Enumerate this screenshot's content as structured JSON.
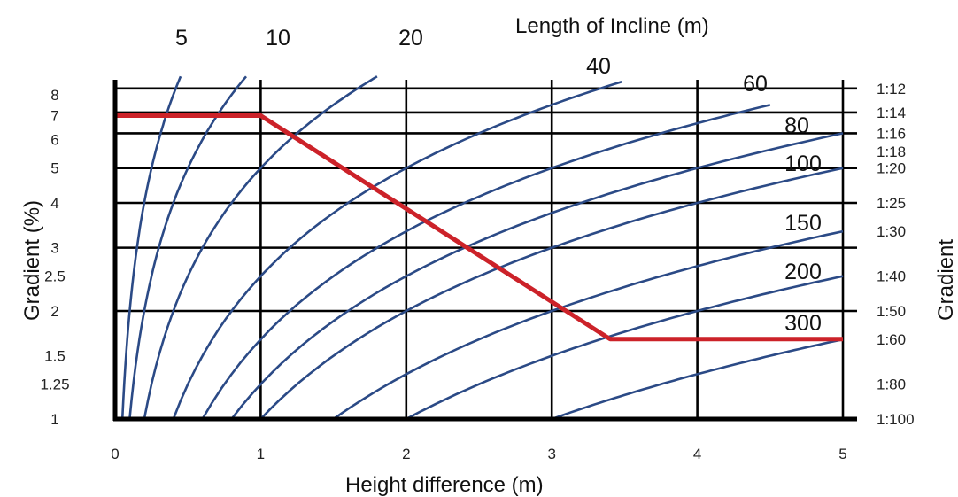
{
  "chart_data": {
    "type": "line",
    "title": "",
    "legend_title": "Length of Incline (m)",
    "xlabel": "Height difference (m)",
    "ylabel": "Gradient (%)",
    "y2label": "Gradient",
    "xlim": [
      0,
      5
    ],
    "ylim": [
      1,
      8
    ],
    "y_scale": "log",
    "grid": true,
    "x_ticks": [
      "0",
      "1",
      "2",
      "3",
      "4",
      "5"
    ],
    "y_ticks": [
      {
        "value": 8,
        "label": "8"
      },
      {
        "value": 7,
        "label": "7"
      },
      {
        "value": 6,
        "label": "6"
      },
      {
        "value": 5,
        "label": "5"
      },
      {
        "value": 4,
        "label": "4"
      },
      {
        "value": 3,
        "label": "3"
      },
      {
        "value": 2.5,
        "label": "2.5"
      },
      {
        "value": 2,
        "label": "2"
      },
      {
        "value": 1.5,
        "label": "1.5"
      },
      {
        "value": 1.25,
        "label": "1.25"
      },
      {
        "value": 1,
        "label": "1"
      }
    ],
    "y2_ticks": [
      {
        "value": 8.333,
        "label": "1:12"
      },
      {
        "value": 7.143,
        "label": "1:14"
      },
      {
        "value": 6.25,
        "label": "1:16"
      },
      {
        "value": 5.556,
        "label": "1:18"
      },
      {
        "value": 5,
        "label": "1:20"
      },
      {
        "value": 4,
        "label": "1:25"
      },
      {
        "value": 3.333,
        "label": "1:30"
      },
      {
        "value": 2.5,
        "label": "1:40"
      },
      {
        "value": 2,
        "label": "1:50"
      },
      {
        "value": 1.667,
        "label": "1:60"
      },
      {
        "value": 1.25,
        "label": "1:80"
      },
      {
        "value": 1,
        "label": "1:100"
      }
    ],
    "horizontal_gridlines": [
      8.333,
      7.143,
      6.25,
      5,
      4,
      3,
      2
    ],
    "series": [
      {
        "name": "5",
        "length_m": 5,
        "y_max": 9.0
      },
      {
        "name": "10",
        "length_m": 10,
        "y_max": 9.0
      },
      {
        "name": "20",
        "length_m": 20,
        "y_max": 9.0
      },
      {
        "name": "40",
        "length_m": 40,
        "y_max": 8.7
      },
      {
        "name": "60",
        "length_m": 60,
        "y_max": 7.5
      },
      {
        "name": "80",
        "length_m": 80,
        "y_max": 6.3
      },
      {
        "name": "100",
        "length_m": 100,
        "y_max": 5.0
      },
      {
        "name": "150",
        "length_m": 150,
        "y_max": 3.4
      },
      {
        "name": "200",
        "length_m": 200,
        "y_max": 2.5
      },
      {
        "name": "300",
        "length_m": 300,
        "y_max": 1.7
      }
    ],
    "example_path": {
      "color": "#cc2229",
      "points": [
        [
          0,
          7.0
        ],
        [
          1,
          7.0
        ],
        [
          3.4,
          1.67
        ],
        [
          5,
          1.67
        ]
      ]
    },
    "curve_color": "#2b4a86"
  }
}
